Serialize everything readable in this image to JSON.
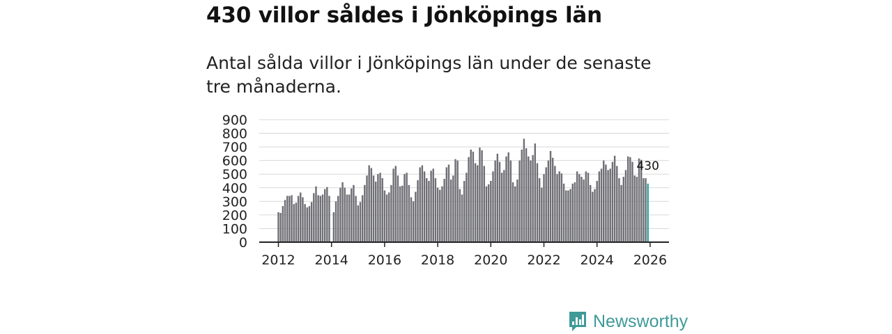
{
  "title": "430 villor såldes i Jönköpings län",
  "subtitle": "Antal sålda villor i Jönköpings län under de senaste tre månaderna.",
  "brand": {
    "name": "Newsworthy",
    "color": "#3f9a98"
  },
  "colors": {
    "bar": "#6e6e75",
    "highlight": "#2aa3a0",
    "grid": "#d8d8d8",
    "axis": "#222222"
  },
  "chart_data": {
    "type": "bar",
    "title": "430 villor såldes i Jönköpings län",
    "xlabel": "",
    "ylabel": "",
    "ylim": [
      0,
      900
    ],
    "yticks": [
      0,
      100,
      200,
      300,
      400,
      500,
      600,
      700,
      800,
      900
    ],
    "xticks": [
      "2012",
      "2014",
      "2016",
      "2018",
      "2020",
      "2022",
      "2024",
      "2026"
    ],
    "x_start": "2012-01",
    "last_label": "430",
    "values": [
      220,
      215,
      265,
      310,
      340,
      340,
      345,
      280,
      290,
      340,
      365,
      330,
      280,
      255,
      265,
      295,
      360,
      410,
      345,
      340,
      350,
      390,
      405,
      340,
      null,
      220,
      300,
      340,
      400,
      440,
      400,
      350,
      350,
      395,
      420,
      340,
      270,
      295,
      345,
      420,
      490,
      565,
      545,
      490,
      445,
      500,
      510,
      470,
      380,
      350,
      365,
      420,
      540,
      560,
      490,
      410,
      415,
      500,
      510,
      420,
      330,
      300,
      370,
      455,
      550,
      565,
      520,
      470,
      450,
      525,
      540,
      470,
      400,
      385,
      410,
      465,
      550,
      570,
      460,
      490,
      610,
      600,
      390,
      350,
      450,
      510,
      625,
      680,
      665,
      580,
      565,
      695,
      675,
      560,
      410,
      425,
      450,
      520,
      600,
      650,
      590,
      510,
      530,
      630,
      660,
      600,
      440,
      410,
      460,
      600,
      680,
      760,
      690,
      630,
      600,
      640,
      725,
      580,
      470,
      400,
      500,
      550,
      600,
      670,
      620,
      560,
      500,
      520,
      505,
      430,
      380,
      380,
      390,
      430,
      440,
      520,
      500,
      480,
      460,
      520,
      510,
      420,
      370,
      390,
      450,
      520,
      540,
      600,
      570,
      530,
      540,
      590,
      635,
      560,
      470,
      420,
      480,
      530,
      630,
      625,
      590,
      490,
      480,
      615,
      605,
      470,
      470,
      430
    ]
  }
}
